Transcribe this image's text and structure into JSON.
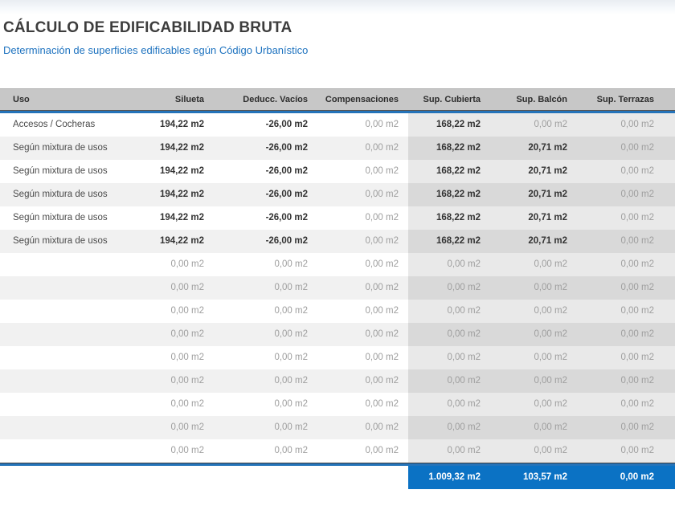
{
  "page": {
    "title": "CÁLCULO DE EDIFICABILIDAD BRUTA",
    "subtitle": "Determinación de superficies edificables egún Código Urbanístico"
  },
  "colors": {
    "accent_blue": "#0b72c4",
    "separator_blue": "#2473b9",
    "header_bg": "#c7c7c7",
    "subtitle_blue": "#1d72bf"
  },
  "table": {
    "columns": [
      "Uso",
      "Silueta",
      "Deducc. Vacíos",
      "Compensaciones",
      "Sup. Cubierta",
      "Sup. Balcón",
      "Sup. Terrazas"
    ],
    "rows": [
      {
        "cells": [
          {
            "t": "Accesos / Cocheras",
            "s": "label"
          },
          {
            "t": "194,22 m2",
            "s": "strong"
          },
          {
            "t": "-26,00 m2",
            "s": "strong"
          },
          {
            "t": "0,00 m2",
            "s": "dim"
          },
          {
            "t": "168,22 m2",
            "s": "strong"
          },
          {
            "t": "0,00 m2",
            "s": "dim"
          },
          {
            "t": "0,00 m2",
            "s": "dim"
          }
        ]
      },
      {
        "cells": [
          {
            "t": "Según mixtura de usos",
            "s": "label"
          },
          {
            "t": "194,22 m2",
            "s": "strong"
          },
          {
            "t": "-26,00 m2",
            "s": "strong"
          },
          {
            "t": "0,00 m2",
            "s": "dim"
          },
          {
            "t": "168,22 m2",
            "s": "strong"
          },
          {
            "t": "20,71 m2",
            "s": "strong"
          },
          {
            "t": "0,00 m2",
            "s": "dim"
          }
        ]
      },
      {
        "cells": [
          {
            "t": "Según mixtura de usos",
            "s": "label"
          },
          {
            "t": "194,22 m2",
            "s": "strong"
          },
          {
            "t": "-26,00 m2",
            "s": "strong"
          },
          {
            "t": "0,00 m2",
            "s": "dim"
          },
          {
            "t": "168,22 m2",
            "s": "strong"
          },
          {
            "t": "20,71 m2",
            "s": "strong"
          },
          {
            "t": "0,00 m2",
            "s": "dim"
          }
        ]
      },
      {
        "cells": [
          {
            "t": "Según mixtura de usos",
            "s": "label"
          },
          {
            "t": "194,22 m2",
            "s": "strong"
          },
          {
            "t": "-26,00 m2",
            "s": "strong"
          },
          {
            "t": "0,00 m2",
            "s": "dim"
          },
          {
            "t": "168,22 m2",
            "s": "strong"
          },
          {
            "t": "20,71 m2",
            "s": "strong"
          },
          {
            "t": "0,00 m2",
            "s": "dim"
          }
        ]
      },
      {
        "cells": [
          {
            "t": "Según mixtura de usos",
            "s": "label"
          },
          {
            "t": "194,22 m2",
            "s": "strong"
          },
          {
            "t": "-26,00 m2",
            "s": "strong"
          },
          {
            "t": "0,00 m2",
            "s": "dim"
          },
          {
            "t": "168,22 m2",
            "s": "strong"
          },
          {
            "t": "20,71 m2",
            "s": "strong"
          },
          {
            "t": "0,00 m2",
            "s": "dim"
          }
        ]
      },
      {
        "cells": [
          {
            "t": "Según mixtura de usos",
            "s": "label"
          },
          {
            "t": "194,22 m2",
            "s": "strong"
          },
          {
            "t": "-26,00 m2",
            "s": "strong"
          },
          {
            "t": "0,00 m2",
            "s": "dim"
          },
          {
            "t": "168,22 m2",
            "s": "strong"
          },
          {
            "t": "20,71 m2",
            "s": "strong"
          },
          {
            "t": "0,00 m2",
            "s": "dim"
          }
        ]
      },
      {
        "cells": [
          {
            "t": "",
            "s": "label"
          },
          {
            "t": "0,00 m2",
            "s": "dim"
          },
          {
            "t": "0,00 m2",
            "s": "dim"
          },
          {
            "t": "0,00 m2",
            "s": "dim"
          },
          {
            "t": "0,00 m2",
            "s": "dim"
          },
          {
            "t": "0,00 m2",
            "s": "dim"
          },
          {
            "t": "0,00 m2",
            "s": "dim"
          }
        ]
      },
      {
        "cells": [
          {
            "t": "",
            "s": "label"
          },
          {
            "t": "0,00 m2",
            "s": "dim"
          },
          {
            "t": "0,00 m2",
            "s": "dim"
          },
          {
            "t": "0,00 m2",
            "s": "dim"
          },
          {
            "t": "0,00 m2",
            "s": "dim"
          },
          {
            "t": "0,00 m2",
            "s": "dim"
          },
          {
            "t": "0,00 m2",
            "s": "dim"
          }
        ]
      },
      {
        "cells": [
          {
            "t": "",
            "s": "label"
          },
          {
            "t": "0,00 m2",
            "s": "dim"
          },
          {
            "t": "0,00 m2",
            "s": "dim"
          },
          {
            "t": "0,00 m2",
            "s": "dim"
          },
          {
            "t": "0,00 m2",
            "s": "dim"
          },
          {
            "t": "0,00 m2",
            "s": "dim"
          },
          {
            "t": "0,00 m2",
            "s": "dim"
          }
        ]
      },
      {
        "cells": [
          {
            "t": "",
            "s": "label"
          },
          {
            "t": "0,00 m2",
            "s": "dim"
          },
          {
            "t": "0,00 m2",
            "s": "dim"
          },
          {
            "t": "0,00 m2",
            "s": "dim"
          },
          {
            "t": "0,00 m2",
            "s": "dim"
          },
          {
            "t": "0,00 m2",
            "s": "dim"
          },
          {
            "t": "0,00 m2",
            "s": "dim"
          }
        ]
      },
      {
        "cells": [
          {
            "t": "",
            "s": "label"
          },
          {
            "t": "0,00 m2",
            "s": "dim"
          },
          {
            "t": "0,00 m2",
            "s": "dim"
          },
          {
            "t": "0,00 m2",
            "s": "dim"
          },
          {
            "t": "0,00 m2",
            "s": "dim"
          },
          {
            "t": "0,00 m2",
            "s": "dim"
          },
          {
            "t": "0,00 m2",
            "s": "dim"
          }
        ]
      },
      {
        "cells": [
          {
            "t": "",
            "s": "label"
          },
          {
            "t": "0,00 m2",
            "s": "dim"
          },
          {
            "t": "0,00 m2",
            "s": "dim"
          },
          {
            "t": "0,00 m2",
            "s": "dim"
          },
          {
            "t": "0,00 m2",
            "s": "dim"
          },
          {
            "t": "0,00 m2",
            "s": "dim"
          },
          {
            "t": "0,00 m2",
            "s": "dim"
          }
        ]
      },
      {
        "cells": [
          {
            "t": "",
            "s": "label"
          },
          {
            "t": "0,00 m2",
            "s": "dim"
          },
          {
            "t": "0,00 m2",
            "s": "dim"
          },
          {
            "t": "0,00 m2",
            "s": "dim"
          },
          {
            "t": "0,00 m2",
            "s": "dim"
          },
          {
            "t": "0,00 m2",
            "s": "dim"
          },
          {
            "t": "0,00 m2",
            "s": "dim"
          }
        ]
      },
      {
        "cells": [
          {
            "t": "",
            "s": "label"
          },
          {
            "t": "0,00 m2",
            "s": "dim"
          },
          {
            "t": "0,00 m2",
            "s": "dim"
          },
          {
            "t": "0,00 m2",
            "s": "dim"
          },
          {
            "t": "0,00 m2",
            "s": "dim"
          },
          {
            "t": "0,00 m2",
            "s": "dim"
          },
          {
            "t": "0,00 m2",
            "s": "dim"
          }
        ]
      },
      {
        "cells": [
          {
            "t": "",
            "s": "label"
          },
          {
            "t": "0,00 m2",
            "s": "dim"
          },
          {
            "t": "0,00 m2",
            "s": "dim"
          },
          {
            "t": "0,00 m2",
            "s": "dim"
          },
          {
            "t": "0,00 m2",
            "s": "dim"
          },
          {
            "t": "0,00 m2",
            "s": "dim"
          },
          {
            "t": "0,00 m2",
            "s": "dim"
          }
        ]
      }
    ],
    "totals": {
      "sup_cubierta": "1.009,32 m2",
      "sup_balcon": "103,57 m2",
      "sup_terrazas": "0,00 m2"
    }
  }
}
